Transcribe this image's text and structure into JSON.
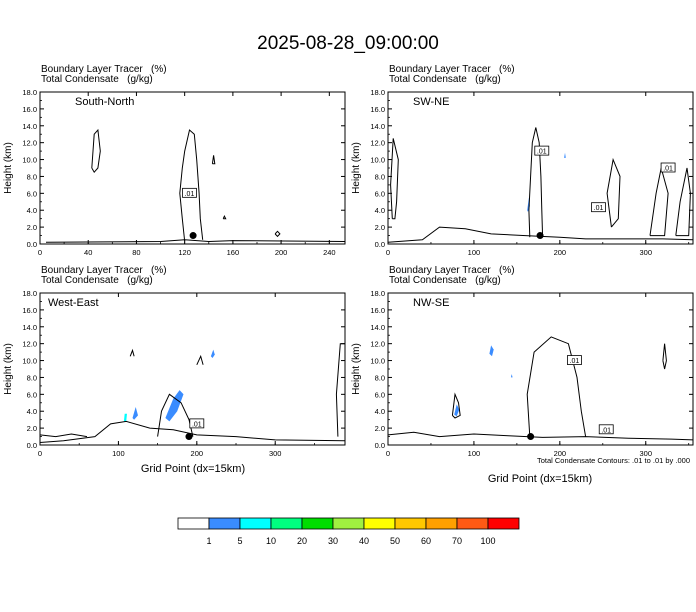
{
  "title": "2025-08-28_09:00:00",
  "panels": [
    {
      "id": "south-north",
      "header_line1": "Boundary Layer Tracer   (%)",
      "header_line2": "Total Condensate   (g/kg)",
      "label": "South-North",
      "ylabel": "Height (km)",
      "xlabel": "",
      "xlim": [
        0,
        253
      ],
      "xticks": [
        "0",
        "40",
        "80",
        "120",
        "160",
        "200",
        "240"
      ],
      "ylim": [
        0,
        18
      ],
      "yticks": [
        "0.0",
        "2.0",
        "4.0",
        "6.0",
        "8.0",
        "10.0",
        "12.0",
        "14.0",
        "16.0",
        "18.0"
      ],
      "contour_labels": [
        ".01"
      ]
    },
    {
      "id": "sw-ne",
      "header_line1": "Boundary Layer Tracer   (%)",
      "header_line2": "Total Condensate   (g/kg)",
      "label": "SW-NE",
      "ylabel": "Height (km)",
      "xlabel": "",
      "xlim": [
        0,
        355
      ],
      "xticks": [
        "0",
        "100",
        "200",
        "300"
      ],
      "ylim": [
        0,
        18
      ],
      "yticks": [
        "0.0",
        "2.0",
        "4.0",
        "6.0",
        "8.0",
        "10.0",
        "12.0",
        "14.0",
        "16.0",
        "18.0"
      ],
      "contour_labels": [
        ".01",
        ".01",
        ".01"
      ]
    },
    {
      "id": "west-east",
      "header_line1": "Boundary Layer Tracer   (%)",
      "header_line2": "Total Condensate   (g/kg)",
      "label": "West-East",
      "ylabel": "Height (km)",
      "xlabel": "Grid Point (dx=15km)",
      "xlim": [
        0,
        389
      ],
      "xticks": [
        "0",
        "100",
        "200",
        "300"
      ],
      "ylim": [
        0,
        18
      ],
      "yticks": [
        "0.0",
        "2.0",
        "4.0",
        "6.0",
        "8.0",
        "10.0",
        "12.0",
        "14.0",
        "16.0",
        "18.0"
      ],
      "contour_labels": [
        ".01"
      ]
    },
    {
      "id": "nw-se",
      "header_line1": "Boundary Layer Tracer   (%)",
      "header_line2": "Total Condensate   (g/kg)",
      "label": "NW-SE",
      "ylabel": "Height (km)",
      "xlabel": "Grid Point (dx=15km)",
      "xlim": [
        0,
        355
      ],
      "xticks": [
        "0",
        "100",
        "200",
        "300"
      ],
      "ylim": [
        0,
        18
      ],
      "yticks": [
        "0.0",
        "2.0",
        "4.0",
        "6.0",
        "8.0",
        "10.0",
        "12.0",
        "14.0",
        "16.0",
        "18.0"
      ],
      "contour_labels": [
        ".01",
        ".01"
      ],
      "footnote": "Total Condensate Contours: .01 to .01 by .000"
    }
  ],
  "colorbar": {
    "labels": [
      "1",
      "5",
      "10",
      "20",
      "30",
      "40",
      "50",
      "60",
      "70",
      "100"
    ],
    "colors": [
      "#ffffff",
      "#3a8cff",
      "#00ffff",
      "#00ff80",
      "#00dd00",
      "#a0f040",
      "#ffff00",
      "#ffc800",
      "#ffa000",
      "#ff5a14",
      "#ff0000"
    ]
  },
  "chart_data": [
    {
      "type": "line",
      "panel": "South-North",
      "description_units": "x: grid point, y: height (km)",
      "contours": [
        {
          "level": ".01",
          "points": [
            [
              5,
              0.2
            ],
            [
              100,
              0.3
            ],
            [
              120,
              0.5
            ],
            [
              140,
              0.3
            ],
            [
              160,
              0.4
            ],
            [
              253,
              0.3
            ]
          ]
        },
        {
          "level": ".01",
          "points": [
            [
              120,
              0.3
            ],
            [
              118,
              3
            ],
            [
              116,
              6
            ],
            [
              118,
              9
            ],
            [
              120,
              11
            ],
            [
              124,
              13.5
            ],
            [
              128,
              13
            ],
            [
              130,
              10
            ],
            [
              132,
              6
            ],
            [
              133,
              3
            ],
            [
              135,
              0.5
            ]
          ]
        },
        {
          "level": ".01",
          "points": [
            [
              43,
              9
            ],
            [
              45,
              13
            ],
            [
              48,
              13.5
            ],
            [
              50,
              11
            ],
            [
              48,
              9
            ],
            [
              45,
              8.5
            ],
            [
              43,
              9
            ]
          ]
        },
        {
          "level": ".01",
          "points": [
            [
              143,
              9.5
            ],
            [
              144,
              10.5
            ],
            [
              145,
              9.5
            ],
            [
              143,
              9.5
            ]
          ]
        },
        {
          "level": ".01",
          "points": [
            [
              152,
              3
            ],
            [
              153,
              3.3
            ],
            [
              154,
              3
            ],
            [
              152,
              3
            ]
          ]
        },
        {
          "level": ".01",
          "points": [
            [
              195,
              1.2
            ],
            [
              197,
              1.5
            ],
            [
              199,
              1.2
            ],
            [
              197,
              0.9
            ],
            [
              195,
              1.2
            ]
          ]
        }
      ],
      "tracer_patches": [],
      "markers": [
        {
          "x": 127,
          "y": 1.0
        }
      ]
    },
    {
      "type": "line",
      "panel": "SW-NE",
      "description_units": "x: grid point, y: height (km)",
      "contours": [
        {
          "level": ".01",
          "points": [
            [
              0,
              0.2
            ],
            [
              40,
              0.5
            ],
            [
              60,
              2.0
            ],
            [
              90,
              1.8
            ],
            [
              120,
              1.2
            ],
            [
              160,
              1.0
            ],
            [
              200,
              0.8
            ],
            [
              230,
              0.6
            ],
            [
              280,
              0.6
            ],
            [
              320,
              0.6
            ],
            [
              355,
              0.5
            ]
          ]
        },
        {
          "level": ".01",
          "points": [
            [
              165,
              0.8
            ],
            [
              164,
              4
            ],
            [
              166,
              8
            ],
            [
              168,
              12
            ],
            [
              172,
              13.8
            ],
            [
              176,
              12
            ],
            [
              178,
              8
            ],
            [
              179,
              4
            ],
            [
              180,
              0.8
            ]
          ]
        },
        {
          "level": ".01",
          "points": [
            [
              5,
              3
            ],
            [
              3,
              7
            ],
            [
              6,
              12.5
            ],
            [
              12,
              10
            ],
            [
              10,
              5
            ],
            [
              8,
              3
            ],
            [
              5,
              3
            ]
          ]
        },
        {
          "level": ".01",
          "points": [
            [
              260,
              2
            ],
            [
              255,
              6
            ],
            [
              262,
              10
            ],
            [
              270,
              8
            ],
            [
              268,
              3
            ],
            [
              260,
              2
            ]
          ]
        },
        {
          "level": ".01",
          "points": [
            [
              305,
              1
            ],
            [
              312,
              6
            ],
            [
              318,
              9
            ],
            [
              326,
              6
            ],
            [
              322,
              1
            ],
            [
              305,
              1
            ]
          ]
        },
        {
          "level": ".01",
          "points": [
            [
              335,
              1
            ],
            [
              340,
              5
            ],
            [
              348,
              9
            ],
            [
              352,
              6
            ],
            [
              350,
              1
            ],
            [
              335,
              1
            ]
          ]
        }
      ],
      "tracer_patches": [
        {
          "value_range": "1-5",
          "points": [
            [
              162,
              4.0
            ],
            [
              164,
              5.5
            ],
            [
              165,
              4.5
            ],
            [
              163,
              3.8
            ],
            [
              162,
              4.0
            ]
          ]
        },
        {
          "value_range": "1-5",
          "points": [
            [
              205,
              10.2
            ],
            [
              206,
              10.8
            ],
            [
              207,
              10.2
            ],
            [
              205,
              10.2
            ]
          ]
        }
      ],
      "markers": [
        {
          "x": 177,
          "y": 1.0
        }
      ]
    },
    {
      "type": "line",
      "panel": "West-East",
      "description_units": "x: grid point, y: height (km)",
      "contours": [
        {
          "level": ".01",
          "points": [
            [
              0,
              0.3
            ],
            [
              30,
              0.5
            ],
            [
              70,
              1.0
            ],
            [
              90,
              2.5
            ],
            [
              110,
              2.8
            ],
            [
              140,
              2.0
            ],
            [
              170,
              1.8
            ],
            [
              200,
              1.2
            ],
            [
              250,
              1.0
            ],
            [
              300,
              0.6
            ],
            [
              389,
              0.5
            ]
          ]
        },
        {
          "level": ".01",
          "points": [
            [
              0,
              1.2
            ],
            [
              20,
              1.0
            ],
            [
              40,
              1.3
            ],
            [
              60,
              1.0
            ]
          ]
        },
        {
          "level": ".01",
          "points": [
            [
              150,
              1.0
            ],
            [
              155,
              4
            ],
            [
              165,
              6
            ],
            [
              180,
              5
            ],
            [
              190,
              3
            ],
            [
              195,
              1.0
            ]
          ]
        },
        {
          "level": ".01",
          "points": [
            [
              380,
              1
            ],
            [
              378,
              6
            ],
            [
              383,
              12
            ],
            [
              389,
              12
            ],
            [
              389,
              1
            ]
          ]
        },
        {
          "level": ".01",
          "points": [
            [
              115,
              10.5
            ],
            [
              118,
              11.2
            ],
            [
              120,
              10.5
            ]
          ]
        },
        {
          "level": ".01",
          "points": [
            [
              200,
              9.5
            ],
            [
              205,
              10.5
            ],
            [
              208,
              9.5
            ]
          ]
        }
      ],
      "tracer_patches": [
        {
          "value_range": "1-5",
          "points": [
            [
              160,
              3.2
            ],
            [
              170,
              5.5
            ],
            [
              178,
              6.5
            ],
            [
              183,
              6.0
            ],
            [
              175,
              4.0
            ],
            [
              165,
              2.8
            ],
            [
              160,
              3.2
            ]
          ]
        },
        {
          "value_range": "1-5",
          "points": [
            [
              118,
              3.2
            ],
            [
              122,
              4.5
            ],
            [
              125,
              3.5
            ],
            [
              120,
              3.0
            ],
            [
              118,
              3.2
            ]
          ]
        },
        {
          "value_range": "1-5",
          "points": [
            [
              218,
              10.5
            ],
            [
              221,
              11.3
            ],
            [
              223,
              10.7
            ],
            [
              220,
              10.3
            ],
            [
              218,
              10.5
            ]
          ]
        },
        {
          "value_range": "5-10",
          "points": [
            [
              107,
              2.8
            ],
            [
              108,
              3.7
            ],
            [
              111,
              3.7
            ],
            [
              110,
              2.8
            ],
            [
              107,
              2.8
            ]
          ]
        }
      ],
      "markers": [
        {
          "x": 190,
          "y": 1.0
        }
      ]
    },
    {
      "type": "line",
      "panel": "NW-SE",
      "description_units": "x: grid point, y: height (km)",
      "contours": [
        {
          "level": ".01",
          "points": [
            [
              0,
              1.2
            ],
            [
              30,
              1.5
            ],
            [
              60,
              1.0
            ],
            [
              100,
              1.3
            ],
            [
              140,
              1.1
            ],
            [
              180,
              0.9
            ],
            [
              230,
              1.0
            ],
            [
              280,
              0.8
            ],
            [
              330,
              0.7
            ],
            [
              355,
              0.6
            ]
          ]
        },
        {
          "level": ".01",
          "points": [
            [
              165,
              1.0
            ],
            [
              162,
              6
            ],
            [
              170,
              11
            ],
            [
              190,
              12.8
            ],
            [
              210,
              12
            ],
            [
              220,
              8
            ],
            [
              225,
              4
            ],
            [
              230,
              1.0
            ]
          ]
        },
        {
          "level": ".01",
          "points": [
            [
              75,
              3.5
            ],
            [
              78,
              6
            ],
            [
              82,
              5
            ],
            [
              84,
              3.5
            ],
            [
              78,
              3.2
            ],
            [
              75,
              3.5
            ]
          ]
        },
        {
          "level": ".01",
          "points": [
            [
              320,
              10
            ],
            [
              322,
              12
            ],
            [
              324,
              10
            ],
            [
              322,
              9
            ],
            [
              320,
              10
            ]
          ]
        }
      ],
      "tracer_patches": [
        {
          "value_range": "1-5",
          "points": [
            [
              118,
              10.8
            ],
            [
              120,
              11.8
            ],
            [
              123,
              11.3
            ],
            [
              121,
              10.5
            ],
            [
              118,
              10.8
            ]
          ]
        },
        {
          "value_range": "1-5",
          "points": [
            [
              77,
              3.6
            ],
            [
              80,
              4.8
            ],
            [
              83,
              4.2
            ],
            [
              80,
              3.4
            ],
            [
              77,
              3.6
            ]
          ]
        },
        {
          "value_range": "1-5",
          "points": [
            [
              143,
              8.0
            ],
            [
              144,
              8.4
            ],
            [
              145,
              8.0
            ],
            [
              143,
              8.0
            ]
          ]
        }
      ],
      "markers": [
        {
          "x": 166,
          "y": 1.0
        }
      ]
    }
  ]
}
